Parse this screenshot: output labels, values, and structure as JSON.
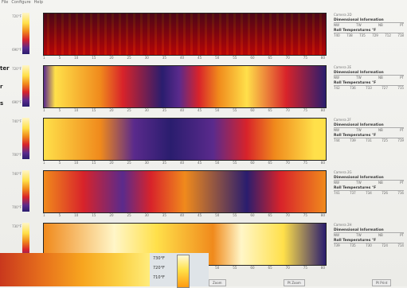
{
  "menu": [
    "File",
    "Configure",
    "Help"
  ],
  "side_words": [
    "ter",
    "r",
    "s"
  ],
  "colors": {
    "dark": "#2a1d6e",
    "purple": "#5a2a8c",
    "red": "#d8232a",
    "orange": "#f08a1c",
    "yellow": "#ffe04a",
    "pale": "#fff6c8"
  },
  "panels": [
    {
      "header": "Camera 2D",
      "title": "Dimensional Information",
      "dims": [
        "NW",
        "TW",
        "NB",
        "PT"
      ],
      "temp_title": "Roll Temperatures °F",
      "temps": [
        "740",
        "738",
        "735",
        "729",
        "712",
        "718"
      ],
      "scale_top": "720°F",
      "scale_bottom": "690°F"
    },
    {
      "header": "Camera 2E",
      "title": "Dimensional Information",
      "dims": [
        "NW",
        "TW",
        "NB",
        "PT"
      ],
      "temp_title": "Roll Temperatures °F",
      "temps": [
        "742",
        "736",
        "733",
        "727",
        "715"
      ],
      "scale_top": "720°F",
      "scale_bottom": "690°F"
    },
    {
      "header": "Camera 2F",
      "title": "Dimensional Information",
      "dims": [
        "NW",
        "TW",
        "NB",
        "PT"
      ],
      "temp_title": "Roll Temperatures °F",
      "temps": [
        "744",
        "739",
        "731",
        "725",
        "719"
      ],
      "scale_top": "740°F",
      "scale_bottom": "700°F"
    },
    {
      "header": "Camera 2G",
      "title": "Dimensional Information",
      "dims": [
        "NW",
        "TW",
        "NB",
        "PT"
      ],
      "temp_title": "Roll Temperatures °F",
      "temps": [
        "741",
        "737",
        "734",
        "726",
        "716"
      ],
      "scale_top": "740°F",
      "scale_bottom": "700°F"
    },
    {
      "header": "Camera 2H",
      "title": "Dimensional Information",
      "dims": [
        "NW",
        "TW",
        "NB",
        "PT"
      ],
      "temp_title": "Roll Temperatures °F",
      "temps": [
        "739",
        "735",
        "730",
        "724",
        "714"
      ],
      "scale_top": "730°F",
      "scale_bottom": "690°F"
    }
  ],
  "ticks": [
    "1",
    "5",
    "10",
    "15",
    "20",
    "25",
    "30",
    "35",
    "40",
    "45",
    "50",
    "55",
    "60",
    "65",
    "70",
    "75",
    "80"
  ],
  "inset": {
    "labels": [
      "730°F",
      "720°F",
      "710°F"
    ]
  },
  "buttons": [
    "Zoom",
    "Pt Zoom",
    "Pt Print"
  ]
}
